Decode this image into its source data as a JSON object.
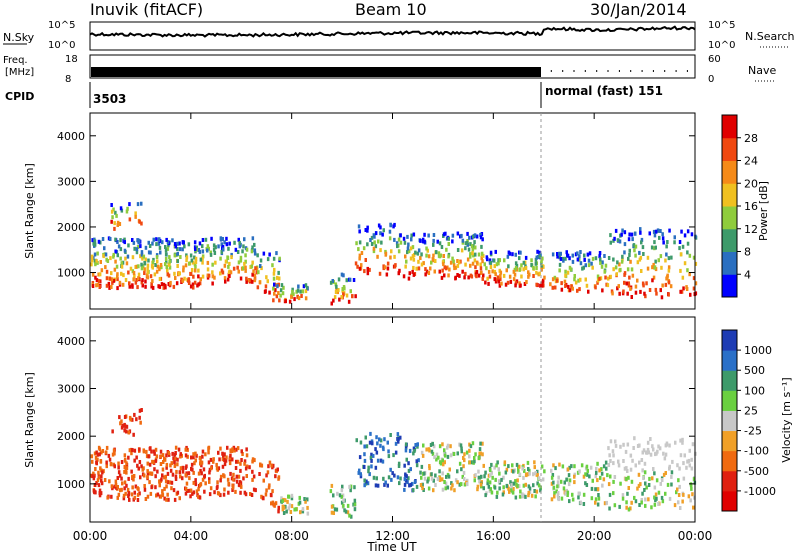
{
  "header": {
    "station": "Inuvik (fitACF)",
    "beam": "Beam 10",
    "date": "30/Jan/2014"
  },
  "strip_panels": {
    "nsky": {
      "label": "N.Sky",
      "ticks": [
        "10^5",
        "10^0"
      ]
    },
    "nsearch": {
      "label": "N.Search",
      "ticks": [
        "10^5",
        "10^0"
      ]
    },
    "freq": {
      "label_line1": "Freq.",
      "label_line2": "[MHz]",
      "ticks": [
        "18",
        "8"
      ]
    },
    "nave": {
      "label": "Nave",
      "ticks": [
        "60",
        "0"
      ]
    },
    "cpid": {
      "label": "CPID",
      "first": "3503",
      "second": "normal (fast) 151",
      "switch_time": "18:00"
    }
  },
  "chart_data": [
    {
      "type": "heatmap",
      "title": "",
      "xlabel": "Time UT",
      "ylabel": "Slant Range [km]",
      "x_ticks": [
        "00:00",
        "04:00",
        "08:00",
        "12:00",
        "16:00",
        "20:00",
        "00:00"
      ],
      "x_range_hours": [
        0,
        24
      ],
      "y_ticks": [
        1000,
        2000,
        3000,
        4000
      ],
      "ylim": [
        200,
        4500
      ],
      "colorbar": {
        "label": "Power [dB]",
        "ticks": [
          "4",
          "8",
          "12",
          "16",
          "20",
          "24",
          "28"
        ],
        "colors": [
          "#0000ff",
          "#2a6fc0",
          "#3d9a6a",
          "#8fcc3c",
          "#f0c020",
          "#f58a18",
          "#f04810",
          "#e00000"
        ]
      }
    },
    {
      "type": "heatmap",
      "title": "",
      "xlabel": "Time UT",
      "ylabel": "Slant Range [km]",
      "x_ticks": [
        "00:00",
        "04:00",
        "08:00",
        "12:00",
        "16:00",
        "20:00",
        "00:00"
      ],
      "x_range_hours": [
        0,
        24
      ],
      "y_ticks": [
        1000,
        2000,
        3000,
        4000
      ],
      "ylim": [
        200,
        4500
      ],
      "colorbar": {
        "label": "Velocity [m s⁻¹]",
        "ticks": [
          "1000",
          "500",
          "100",
          "25",
          "-25",
          "-100",
          "-500",
          "-1000"
        ],
        "colors": [
          "#1e3cb4",
          "#2a70c8",
          "#3d9a6a",
          "#6ad040",
          "#c8c8c8",
          "#f0a028",
          "#f06a10",
          "#e02010",
          "#e00000"
        ]
      }
    }
  ]
}
